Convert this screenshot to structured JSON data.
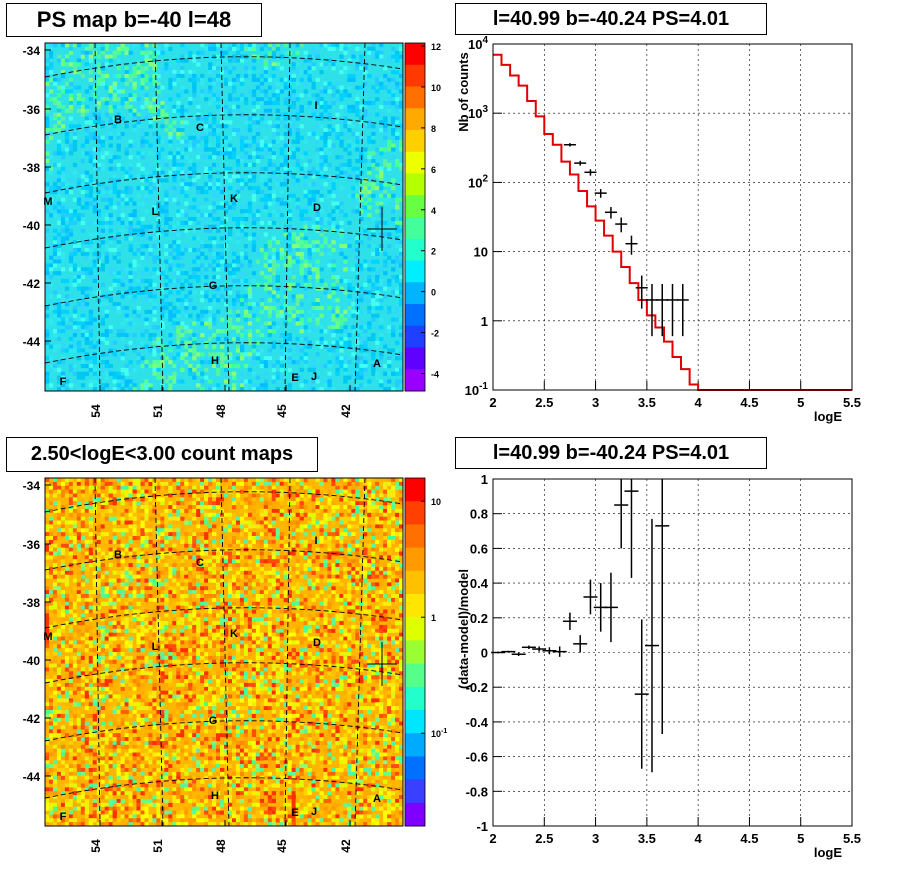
{
  "chart_data": [
    {
      "type": "heatmap",
      "title": "PS map b=-40 l=48",
      "y_ticks": [
        "-34",
        "-36",
        "-38",
        "-40",
        "-42",
        "-44"
      ],
      "x_ticks": [
        "54",
        "51",
        "48",
        "45",
        "42"
      ],
      "colorbar_ticks": [
        "12",
        "10",
        "8",
        "6",
        "4",
        "2",
        "0",
        "-2",
        "-4"
      ],
      "colorbar_range": [
        -5,
        12
      ],
      "source_labels": [
        "B",
        "C",
        "I",
        "M",
        "L",
        "K",
        "D",
        "G",
        "H",
        "A",
        "F",
        "E",
        "J"
      ],
      "marker": "cross near l=40.99 b=-40.24"
    },
    {
      "type": "line",
      "title": "l=40.99 b=-40.24 PS=4.01",
      "xlabel": "logE",
      "ylabel": "Nb of counts",
      "xlim": [
        2,
        5.5
      ],
      "ylim_log": [
        0.1,
        10000
      ],
      "log_y": true,
      "grid": true,
      "x_ticks": [
        "2",
        "2.5",
        "3",
        "3.5",
        "4",
        "4.5",
        "5",
        "5.5"
      ],
      "y_ticks": [
        "10^4",
        "10^3",
        "10^2",
        "10",
        "1",
        "10^-1"
      ],
      "model_color": "#e00000",
      "model_step": {
        "edges": [
          2,
          2.083,
          2.167,
          2.25,
          2.333,
          2.417,
          2.5,
          2.583,
          2.667,
          2.75,
          2.833,
          2.917,
          3,
          3.083,
          3.167,
          3.25,
          3.333,
          3.417,
          3.5,
          3.583,
          3.667,
          3.75,
          3.833,
          3.917,
          4,
          5.5
        ],
        "values": [
          7000,
          5000,
          3500,
          2500,
          1500,
          900,
          500,
          350,
          200,
          130,
          75,
          45,
          28,
          17,
          10,
          6,
          3.5,
          2,
          1.2,
          0.8,
          0.5,
          0.3,
          0.2,
          0.12,
          0.1
        ]
      },
      "data_points": [
        {
          "x": 2.75,
          "y": 350,
          "lo": 330,
          "hi": 370
        },
        {
          "x": 2.85,
          "y": 190,
          "lo": 175,
          "hi": 205
        },
        {
          "x": 2.95,
          "y": 140,
          "lo": 125,
          "hi": 155
        },
        {
          "x": 3.05,
          "y": 70,
          "lo": 60,
          "hi": 80
        },
        {
          "x": 3.15,
          "y": 37,
          "lo": 30,
          "hi": 44
        },
        {
          "x": 3.25,
          "y": 25,
          "lo": 19,
          "hi": 31
        },
        {
          "x": 3.35,
          "y": 13,
          "lo": 9,
          "hi": 17
        },
        {
          "x": 3.45,
          "y": 3,
          "lo": 1.5,
          "hi": 4.5
        },
        {
          "x": 3.55,
          "y": 2,
          "lo": 0.6,
          "hi": 3.4
        },
        {
          "x": 3.65,
          "y": 2,
          "lo": 0.6,
          "hi": 3.4
        },
        {
          "x": 3.75,
          "y": 2,
          "lo": 0.6,
          "hi": 3.4
        },
        {
          "x": 3.85,
          "y": 2,
          "lo": 0.6,
          "hi": 3.4
        }
      ]
    },
    {
      "type": "heatmap",
      "title": "2.50<logE<3.00 count maps",
      "y_ticks": [
        "-34",
        "-36",
        "-38",
        "-40",
        "-42",
        "-44"
      ],
      "x_ticks": [
        "54",
        "51",
        "48",
        "45",
        "42"
      ],
      "colorbar_ticks": [
        "10",
        "1",
        "10^-1"
      ],
      "colorbar_log": true,
      "source_labels": [
        "B",
        "C",
        "I",
        "M",
        "L",
        "K",
        "D",
        "G",
        "H",
        "A",
        "F",
        "E",
        "J"
      ],
      "marker": "cross near l=40.99 b=-40.24"
    },
    {
      "type": "scatter",
      "title": "l=40.99 b=-40.24 PS=4.01",
      "xlabel": "logE",
      "ylabel": "(data-model)/model",
      "xlim": [
        2,
        5.5
      ],
      "ylim": [
        -1,
        1
      ],
      "grid": true,
      "x_ticks": [
        "2",
        "2.5",
        "3",
        "3.5",
        "4",
        "4.5",
        "5",
        "5.5"
      ],
      "y_ticks": [
        "1",
        "0.8",
        "0.6",
        "0.4",
        "0.2",
        "0",
        "-0.2",
        "-0.4",
        "-0.6",
        "-0.8",
        "-1"
      ],
      "points": [
        {
          "x": 2.05,
          "y": 0.0,
          "err": 0.005
        },
        {
          "x": 2.15,
          "y": 0.005,
          "err": 0.005
        },
        {
          "x": 2.25,
          "y": -0.01,
          "err": 0.01
        },
        {
          "x": 2.35,
          "y": 0.03,
          "err": 0.01
        },
        {
          "x": 2.45,
          "y": 0.02,
          "err": 0.015
        },
        {
          "x": 2.55,
          "y": 0.01,
          "err": 0.02
        },
        {
          "x": 2.65,
          "y": 0.005,
          "err": 0.03
        },
        {
          "x": 2.75,
          "y": 0.18,
          "err": 0.05
        },
        {
          "x": 2.85,
          "y": 0.05,
          "err": 0.05
        },
        {
          "x": 2.95,
          "y": 0.32,
          "err": 0.1
        },
        {
          "x": 3.05,
          "y": 0.26,
          "err": 0.14
        },
        {
          "x": 3.15,
          "y": 0.26,
          "err": 0.2
        },
        {
          "x": 3.25,
          "y": 0.85,
          "err": 0.25
        },
        {
          "x": 3.35,
          "y": 0.93,
          "err": 0.5
        },
        {
          "x": 3.45,
          "y": -0.24,
          "err": 0.43
        },
        {
          "x": 3.55,
          "y": 0.04,
          "err": 0.73
        },
        {
          "x": 3.65,
          "y": 0.73,
          "err": 1.2
        }
      ]
    }
  ]
}
